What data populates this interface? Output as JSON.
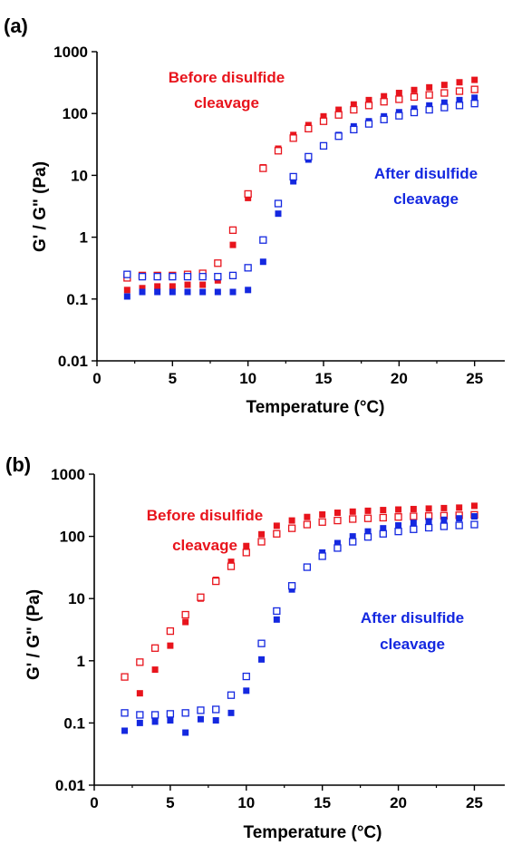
{
  "colors": {
    "red": "#e8141c",
    "blue": "#1428e0",
    "axis": "#000000"
  },
  "chart_data": [
    {
      "panel_label": "(a)",
      "type": "scatter",
      "xlabel": "Temperature (°C)",
      "ylabel": "G' / G\" (Pa)",
      "xlim": [
        0,
        27
      ],
      "ylim": [
        0.01,
        1000
      ],
      "log_y": true,
      "grid": false,
      "xticks": [
        0,
        5,
        10,
        15,
        20,
        25
      ],
      "xtick_labels": [
        "0",
        "5",
        "10",
        "15",
        "20",
        "25"
      ],
      "yticks": [
        0.01,
        0.1,
        1,
        10,
        100,
        1000
      ],
      "ytick_labels": [
        "0.01",
        "0.1",
        "1",
        "10",
        "100",
        "1000"
      ],
      "annotations": [
        {
          "lines": [
            "Before disulfide",
            "cleavage"
          ],
          "color": "red"
        },
        {
          "lines": [
            "After disulfide",
            "cleavage"
          ],
          "color": "blue"
        }
      ],
      "series": [
        {
          "color": "red",
          "marker": "filled-square",
          "x": [
            2,
            3,
            4,
            5,
            6,
            7,
            8,
            9,
            10,
            11,
            12,
            13,
            14,
            15,
            16,
            17,
            18,
            19,
            20,
            21,
            22,
            23,
            24,
            25
          ],
          "y": [
            0.14,
            0.15,
            0.16,
            0.16,
            0.17,
            0.17,
            0.2,
            0.75,
            4.3,
            13.5,
            27,
            45,
            65,
            90,
            115,
            140,
            165,
            190,
            215,
            240,
            265,
            290,
            320,
            350
          ]
        },
        {
          "color": "red",
          "marker": "open-square",
          "x": [
            2,
            3,
            4,
            5,
            6,
            7,
            8,
            9,
            10,
            11,
            12,
            13,
            14,
            15,
            16,
            17,
            18,
            19,
            20,
            21,
            22,
            23,
            24,
            25
          ],
          "y": [
            0.22,
            0.24,
            0.24,
            0.24,
            0.25,
            0.26,
            0.38,
            1.3,
            5.0,
            13.0,
            25,
            40,
            57,
            75,
            95,
            115,
            135,
            155,
            170,
            185,
            200,
            215,
            230,
            245
          ]
        },
        {
          "color": "blue",
          "marker": "filled-square",
          "x": [
            2,
            3,
            4,
            5,
            6,
            7,
            8,
            9,
            10,
            11,
            12,
            13,
            14,
            15,
            16,
            17,
            18,
            19,
            20,
            21,
            22,
            23,
            24,
            25
          ],
          "y": [
            0.11,
            0.13,
            0.13,
            0.13,
            0.13,
            0.13,
            0.13,
            0.13,
            0.14,
            0.4,
            2.4,
            8.0,
            18,
            30,
            45,
            62,
            75,
            90,
            105,
            120,
            135,
            150,
            165,
            180
          ]
        },
        {
          "color": "blue",
          "marker": "open-square",
          "x": [
            2,
            3,
            4,
            5,
            6,
            7,
            8,
            9,
            10,
            11,
            12,
            13,
            14,
            15,
            16,
            17,
            18,
            19,
            20,
            21,
            22,
            23,
            24,
            25
          ],
          "y": [
            0.25,
            0.23,
            0.23,
            0.23,
            0.23,
            0.23,
            0.23,
            0.24,
            0.32,
            0.9,
            3.5,
            9.5,
            20,
            30,
            43,
            55,
            68,
            80,
            92,
            104,
            115,
            125,
            135,
            145
          ]
        }
      ]
    },
    {
      "panel_label": "(b)",
      "type": "scatter",
      "xlabel": "Temperature (°C)",
      "ylabel": "G' / G\" (Pa)",
      "xlim": [
        0,
        27
      ],
      "ylim": [
        0.01,
        1000
      ],
      "log_y": true,
      "grid": false,
      "xticks": [
        0,
        5,
        10,
        15,
        20,
        25
      ],
      "xtick_labels": [
        "0",
        "5",
        "10",
        "15",
        "20",
        "25"
      ],
      "yticks": [
        0.01,
        0.1,
        1,
        10,
        100,
        1000
      ],
      "ytick_labels": [
        "0.01",
        "0.1",
        "1",
        "10",
        "100",
        "1000"
      ],
      "annotations": [
        {
          "lines": [
            "Before disulfide",
            "cleavage"
          ],
          "color": "red"
        },
        {
          "lines": [
            "After disulfide",
            "cleavage"
          ],
          "color": "blue"
        }
      ],
      "series": [
        {
          "color": "red",
          "marker": "filled-square",
          "x": [
            3,
            4,
            5,
            6,
            7,
            8,
            9,
            10,
            11,
            12,
            13,
            14,
            15,
            16,
            17,
            18,
            19,
            20,
            21,
            22,
            23,
            24,
            25
          ],
          "y": [
            0.3,
            0.72,
            1.75,
            4.2,
            10,
            20,
            39,
            70,
            108,
            148,
            180,
            205,
            225,
            240,
            250,
            258,
            265,
            270,
            275,
            280,
            285,
            290,
            310
          ]
        },
        {
          "color": "red",
          "marker": "open-square",
          "x": [
            2,
            3,
            4,
            5,
            6,
            7,
            8,
            9,
            10,
            11,
            12,
            13,
            14,
            15,
            16,
            17,
            18,
            19,
            20,
            21,
            22,
            23,
            24,
            25
          ],
          "y": [
            0.55,
            0.95,
            1.6,
            3.0,
            5.5,
            10.5,
            19,
            33,
            55,
            82,
            110,
            135,
            155,
            170,
            180,
            190,
            195,
            200,
            205,
            210,
            212,
            215,
            218,
            222
          ]
        },
        {
          "color": "blue",
          "marker": "filled-square",
          "x": [
            2,
            3,
            4,
            5,
            6,
            7,
            8,
            9,
            10,
            11,
            12,
            13,
            14,
            15,
            16,
            17,
            18,
            19,
            20,
            21,
            22,
            23,
            24,
            25
          ],
          "y": [
            0.075,
            0.1,
            0.105,
            0.11,
            0.07,
            0.115,
            0.11,
            0.145,
            0.33,
            1.05,
            4.6,
            14,
            32,
            55,
            78,
            100,
            120,
            135,
            150,
            165,
            175,
            185,
            195,
            210
          ]
        },
        {
          "color": "blue",
          "marker": "open-square",
          "x": [
            2,
            3,
            4,
            5,
            6,
            7,
            8,
            9,
            10,
            11,
            12,
            13,
            14,
            15,
            16,
            17,
            18,
            19,
            20,
            21,
            22,
            23,
            24,
            25
          ],
          "y": [
            0.145,
            0.135,
            0.135,
            0.14,
            0.145,
            0.16,
            0.165,
            0.28,
            0.56,
            1.9,
            6.3,
            16,
            32,
            48,
            65,
            82,
            98,
            110,
            120,
            130,
            138,
            145,
            150,
            155
          ]
        }
      ]
    }
  ]
}
